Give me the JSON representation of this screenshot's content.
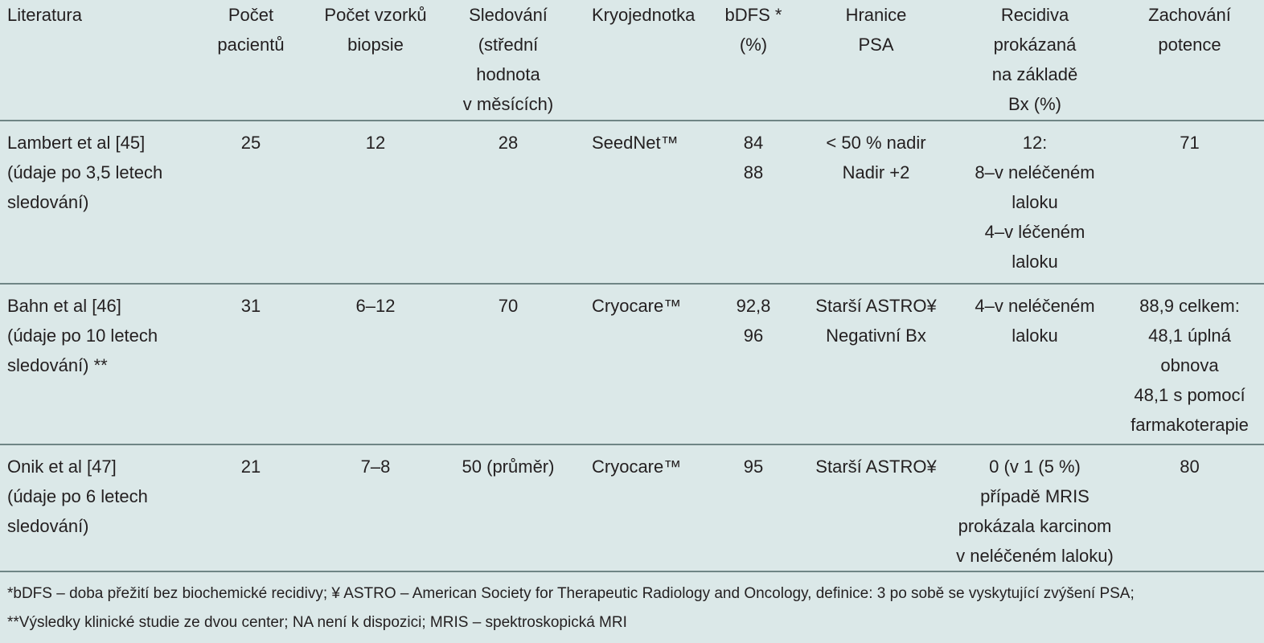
{
  "table": {
    "headers": [
      [
        "Literatura"
      ],
      [
        "Počet",
        "pacientů"
      ],
      [
        "Počet vzorků",
        "biopsie"
      ],
      [
        "Sledování",
        "(střední",
        "hodnota",
        "v měsících)"
      ],
      [
        "Kryojednotka"
      ],
      [
        "bDFS *",
        "(%)"
      ],
      [
        "Hranice",
        "PSA"
      ],
      [
        "Recidiva",
        "prokázaná",
        "na základě",
        "Bx (%)"
      ],
      [
        "Zachování",
        "potence"
      ]
    ],
    "rows": [
      [
        [
          "Lambert et al [45]",
          "(údaje po 3,5 letech",
          "sledování)"
        ],
        [
          "25"
        ],
        [
          "12"
        ],
        [
          "28"
        ],
        [
          "SeedNet™"
        ],
        [
          "84",
          "88"
        ],
        [
          "< 50 % nadir",
          "Nadir +2"
        ],
        [
          "12:",
          "8–v neléčeném",
          "laloku",
          "4–v léčeném",
          "laloku"
        ],
        [
          "71"
        ]
      ],
      [
        [
          "Bahn et al [46]",
          "(údaje po 10 letech",
          "sledování) **"
        ],
        [
          "31"
        ],
        [
          "6–12"
        ],
        [
          "70"
        ],
        [
          "Cryocare™"
        ],
        [
          "92,8",
          "96"
        ],
        [
          "Starší ASTRO¥",
          "Negativní Bx"
        ],
        [
          "4–v neléčeném",
          "laloku"
        ],
        [
          "88,9 celkem:",
          "48,1 úplná",
          "obnova",
          "48,1 s pomocí",
          "farmakoterapie"
        ]
      ],
      [
        [
          "Onik et al [47]",
          "(údaje po 6 letech",
          "sledování)"
        ],
        [
          "21"
        ],
        [
          "7–8"
        ],
        [
          "50 (průměr)"
        ],
        [
          "Cryocare™"
        ],
        [
          "95"
        ],
        [
          "Starší ASTRO¥"
        ],
        [
          "0 (v 1 (5 %)",
          "případě MRIS",
          "prokázala karcinom",
          "v neléčeném laloku)"
        ],
        [
          "80"
        ]
      ]
    ]
  },
  "footnotes": [
    "*bDFS – doba přežití bez biochemické recidivy; ¥ ASTRO – American Society for Therapeutic Radiology and Oncology, definice: 3 po sobě se vyskytující zvýšení PSA;",
    "**Výsledky klinické studie ze dvou center; NA není k dispozici; MRIS – spektroskopická MRI"
  ]
}
